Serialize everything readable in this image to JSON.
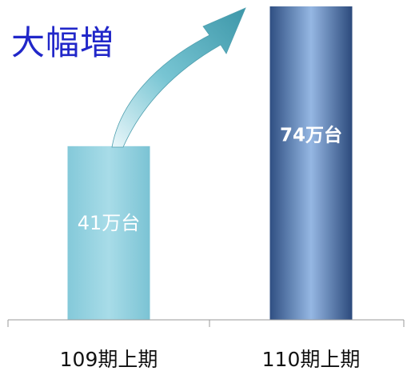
{
  "heading": "大幅増",
  "chart_data": {
    "type": "bar",
    "categories": [
      "109期上期",
      "110期上期"
    ],
    "values": [
      41,
      74
    ],
    "data_labels": [
      "41万台",
      "74万台"
    ],
    "ylim": [
      0,
      74
    ],
    "colors": {
      "bar1": "#97d3e2",
      "bar2": "#6d93c8",
      "heading": "#2127c9",
      "arrow": "#57b1c1"
    },
    "annotation": "growth-arrow"
  }
}
